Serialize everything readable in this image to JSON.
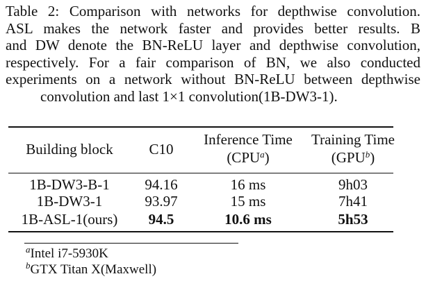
{
  "caption": {
    "lines": [
      "Table 2: Comparison with networks for depthwise convolution.",
      "ASL makes the network faster and provides better results.  B",
      "and DW denote the BN-ReLU layer and depthwise convolution,",
      "respectively. For a fair comparison of BN, we also conducted",
      "experiments on a network without BN-ReLU between depthwise",
      "convolution and last 1×1 convolution(1B-DW3-1)."
    ]
  },
  "table": {
    "header": [
      {
        "text": "Building block"
      },
      {
        "text": "C10"
      },
      {
        "line1": "Inference Time",
        "line2": "(CPU",
        "sup": "a",
        "close": ")"
      },
      {
        "line1": "Training Time",
        "line2": "(GPU",
        "sup": "b",
        "close": ")"
      }
    ],
    "rows": [
      [
        "1B-DW3-B-1",
        "94.16",
        "16 ms",
        "9h03"
      ],
      [
        "1B-DW3-1",
        "93.97",
        "15 ms",
        "7h41"
      ],
      [
        "1B-ASL-1(ours)",
        "94.5",
        "10.6 ms",
        "5h53"
      ]
    ]
  },
  "footnotes": [
    {
      "mark": "a",
      "text": "Intel i7-5930K"
    },
    {
      "mark": "b",
      "text": "GTX Titan X(Maxwell)"
    }
  ]
}
